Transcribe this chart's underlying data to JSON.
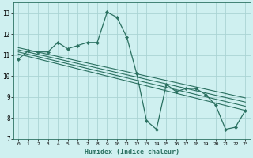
{
  "xlabel": "Humidex (Indice chaleur)",
  "ylabel": "",
  "xlim": [
    -0.5,
    23.5
  ],
  "ylim": [
    7,
    13.5
  ],
  "yticks": [
    7,
    8,
    9,
    10,
    11,
    12,
    13
  ],
  "xticks": [
    0,
    1,
    2,
    3,
    4,
    5,
    6,
    7,
    8,
    9,
    10,
    11,
    12,
    13,
    14,
    15,
    16,
    17,
    18,
    19,
    20,
    21,
    22,
    23
  ],
  "bg_color": "#cff0f0",
  "grid_color": "#aad4d4",
  "line_color": "#2a7060",
  "main_line": {
    "x": [
      0,
      1,
      2,
      3,
      4,
      5,
      6,
      7,
      8,
      9,
      10,
      11,
      12,
      13,
      14,
      15,
      16,
      17,
      18,
      19,
      20,
      21,
      22,
      23
    ],
    "y": [
      10.8,
      11.2,
      11.15,
      11.15,
      11.6,
      11.3,
      11.45,
      11.6,
      11.6,
      13.05,
      12.8,
      11.85,
      10.1,
      7.85,
      7.45,
      9.6,
      9.25,
      9.4,
      9.4,
      9.1,
      8.6,
      7.45,
      7.55,
      8.35
    ]
  },
  "trend_lines": [
    {
      "x": [
        0,
        23
      ],
      "y": [
        11.05,
        8.35
      ]
    },
    {
      "x": [
        0,
        23
      ],
      "y": [
        11.15,
        8.55
      ]
    },
    {
      "x": [
        0,
        23
      ],
      "y": [
        11.25,
        8.75
      ]
    },
    {
      "x": [
        0,
        23
      ],
      "y": [
        11.35,
        8.95
      ]
    }
  ]
}
